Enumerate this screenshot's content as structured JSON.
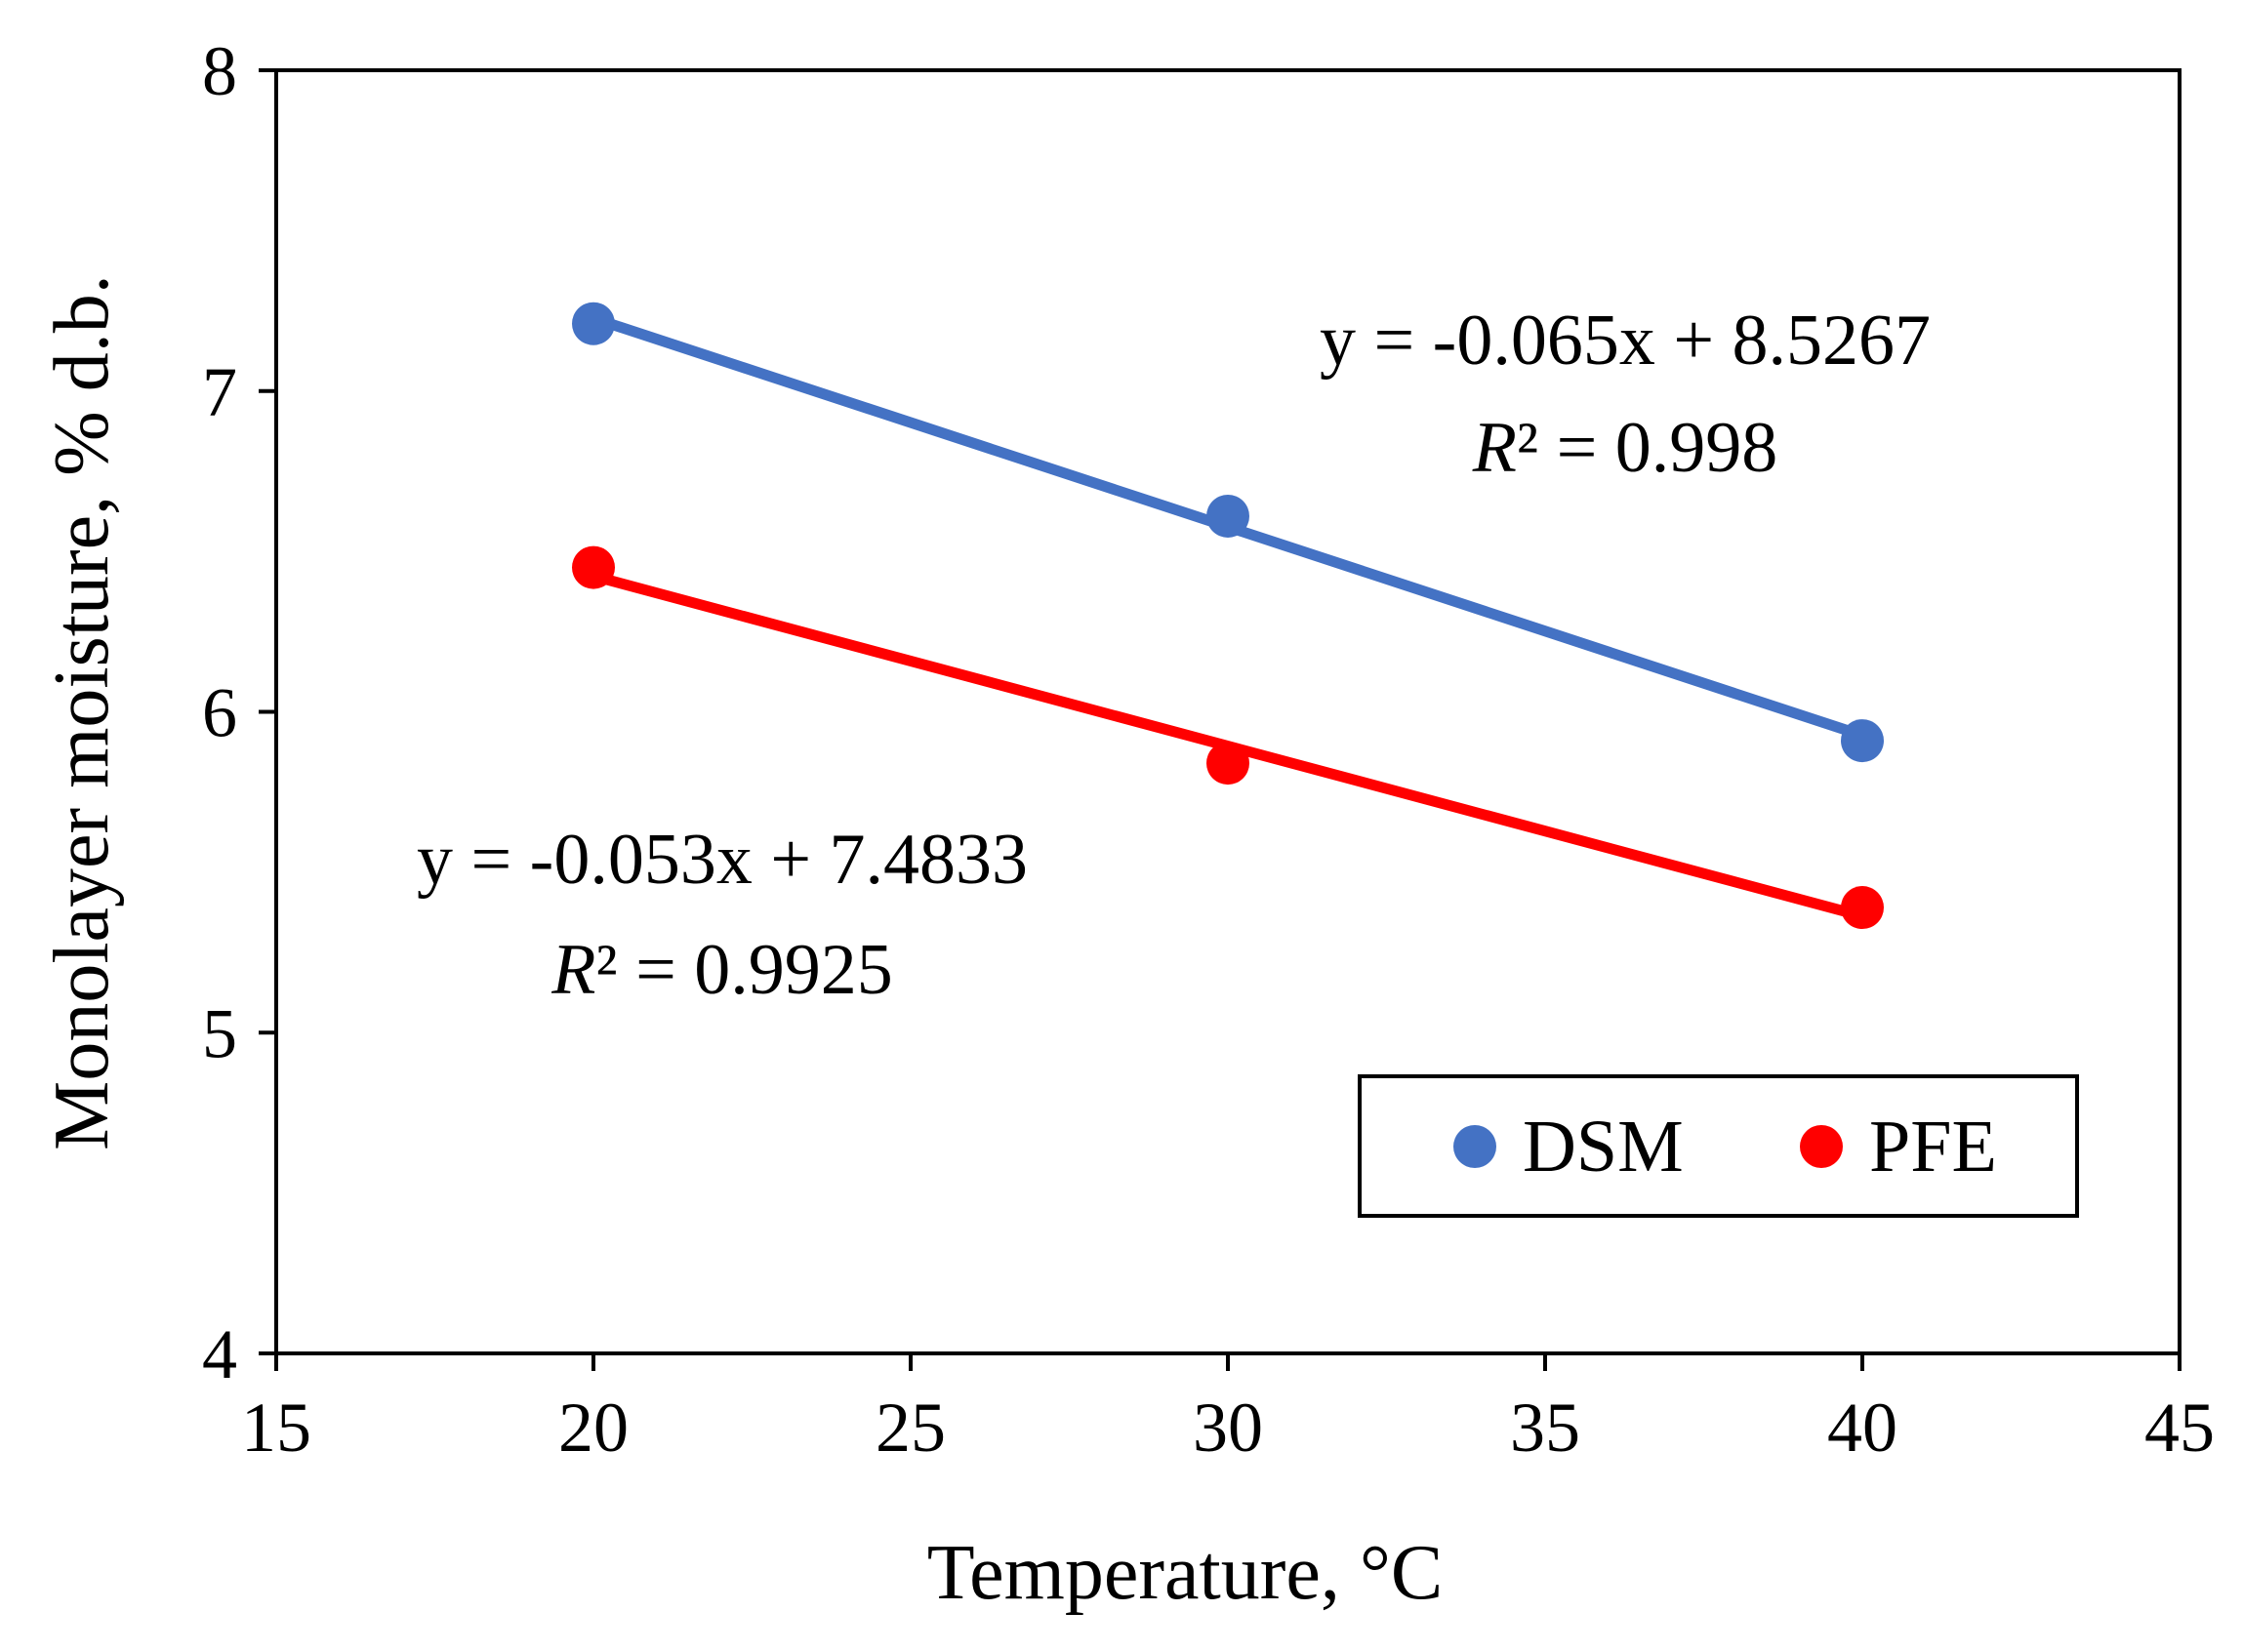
{
  "chart_data": {
    "type": "scatter",
    "title": "",
    "xlabel": "Temperature, °C",
    "ylabel": "Monolayer moisture, % d.b.",
    "xlim": [
      15,
      45
    ],
    "ylim": [
      4,
      8
    ],
    "xticks": [
      "15",
      "20",
      "25",
      "30",
      "35",
      "40",
      "45"
    ],
    "yticks": [
      "4",
      "5",
      "6",
      "7",
      "8"
    ],
    "grid": false,
    "legend_position": "bottom-right",
    "series": [
      {
        "name": "DSM",
        "color": "#4472C4",
        "x": [
          20,
          30,
          40
        ],
        "values": [
          7.21,
          6.61,
          5.91
        ],
        "trendline": {
          "slope": -0.065,
          "intercept": 8.5267
        },
        "equation": "y = -0.065x + 8.5267",
        "r2_symbol": "R",
        "r2_text": "² = 0.998"
      },
      {
        "name": "PFE",
        "color": "#FF0000",
        "x": [
          20,
          30,
          40
        ],
        "values": [
          6.45,
          5.84,
          5.39
        ],
        "trendline": {
          "slope": -0.053,
          "intercept": 7.4833
        },
        "equation": "y = -0.053x + 7.4833",
        "r2_symbol": "R",
        "r2_text": "² = 0.9925"
      }
    ]
  }
}
